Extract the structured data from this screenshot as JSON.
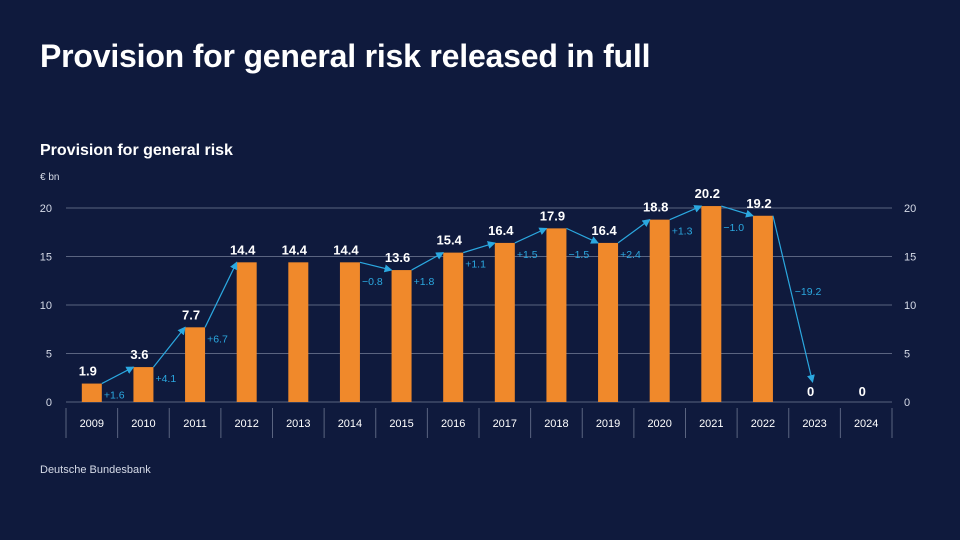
{
  "slide_title": "Provision for general risk released in full",
  "source": "Deutsche Bundesbank",
  "colors": {
    "background": "#0f1a3d",
    "bar": "#f0892b",
    "change_arrow": "#2ba8e0",
    "grid": "#5a6480",
    "text": "#ffffff"
  },
  "chart_data": {
    "type": "bar",
    "title": "Provision for general risk",
    "ylabel": "€ bn",
    "xlabel": "",
    "ylim": [
      0,
      20
    ],
    "yticks": [
      "0",
      "5",
      "10",
      "15",
      "20"
    ],
    "grid": true,
    "categories": [
      "2009",
      "2010",
      "2011",
      "2012",
      "2013",
      "2014",
      "2015",
      "2016",
      "2017",
      "2018",
      "2019",
      "2020",
      "2021",
      "2022",
      "2023",
      "2024"
    ],
    "values": [
      1.9,
      3.6,
      7.7,
      14.4,
      14.4,
      14.4,
      13.6,
      15.4,
      16.4,
      17.9,
      16.4,
      18.8,
      20.2,
      19.2,
      0,
      0
    ],
    "value_labels": [
      "1.9",
      "3.6",
      "7.7",
      "14.4",
      "14.4",
      "14.4",
      "13.6",
      "15.4",
      "16.4",
      "17.9",
      "16.4",
      "18.8",
      "20.2",
      "19.2",
      "0",
      "0"
    ],
    "changes": [
      {
        "from": "2009",
        "to": "2010",
        "label": "+1.6"
      },
      {
        "from": "2010",
        "to": "2011",
        "label": "+4.1"
      },
      {
        "from": "2011",
        "to": "2012",
        "label": "+6.7"
      },
      {
        "from": "2014",
        "to": "2015",
        "label": "−0.8"
      },
      {
        "from": "2015",
        "to": "2016",
        "label": "+1.8"
      },
      {
        "from": "2016",
        "to": "2017",
        "label": "+1.1"
      },
      {
        "from": "2017",
        "to": "2018",
        "label": "+1.5"
      },
      {
        "from": "2018",
        "to": "2019",
        "label": "−1.5"
      },
      {
        "from": "2019",
        "to": "2020",
        "label": "+2.4"
      },
      {
        "from": "2020",
        "to": "2021",
        "label": "+1.3"
      },
      {
        "from": "2021",
        "to": "2022",
        "label": "−1.0"
      },
      {
        "from": "2022",
        "to": "2023",
        "label": "−19.2"
      }
    ]
  }
}
